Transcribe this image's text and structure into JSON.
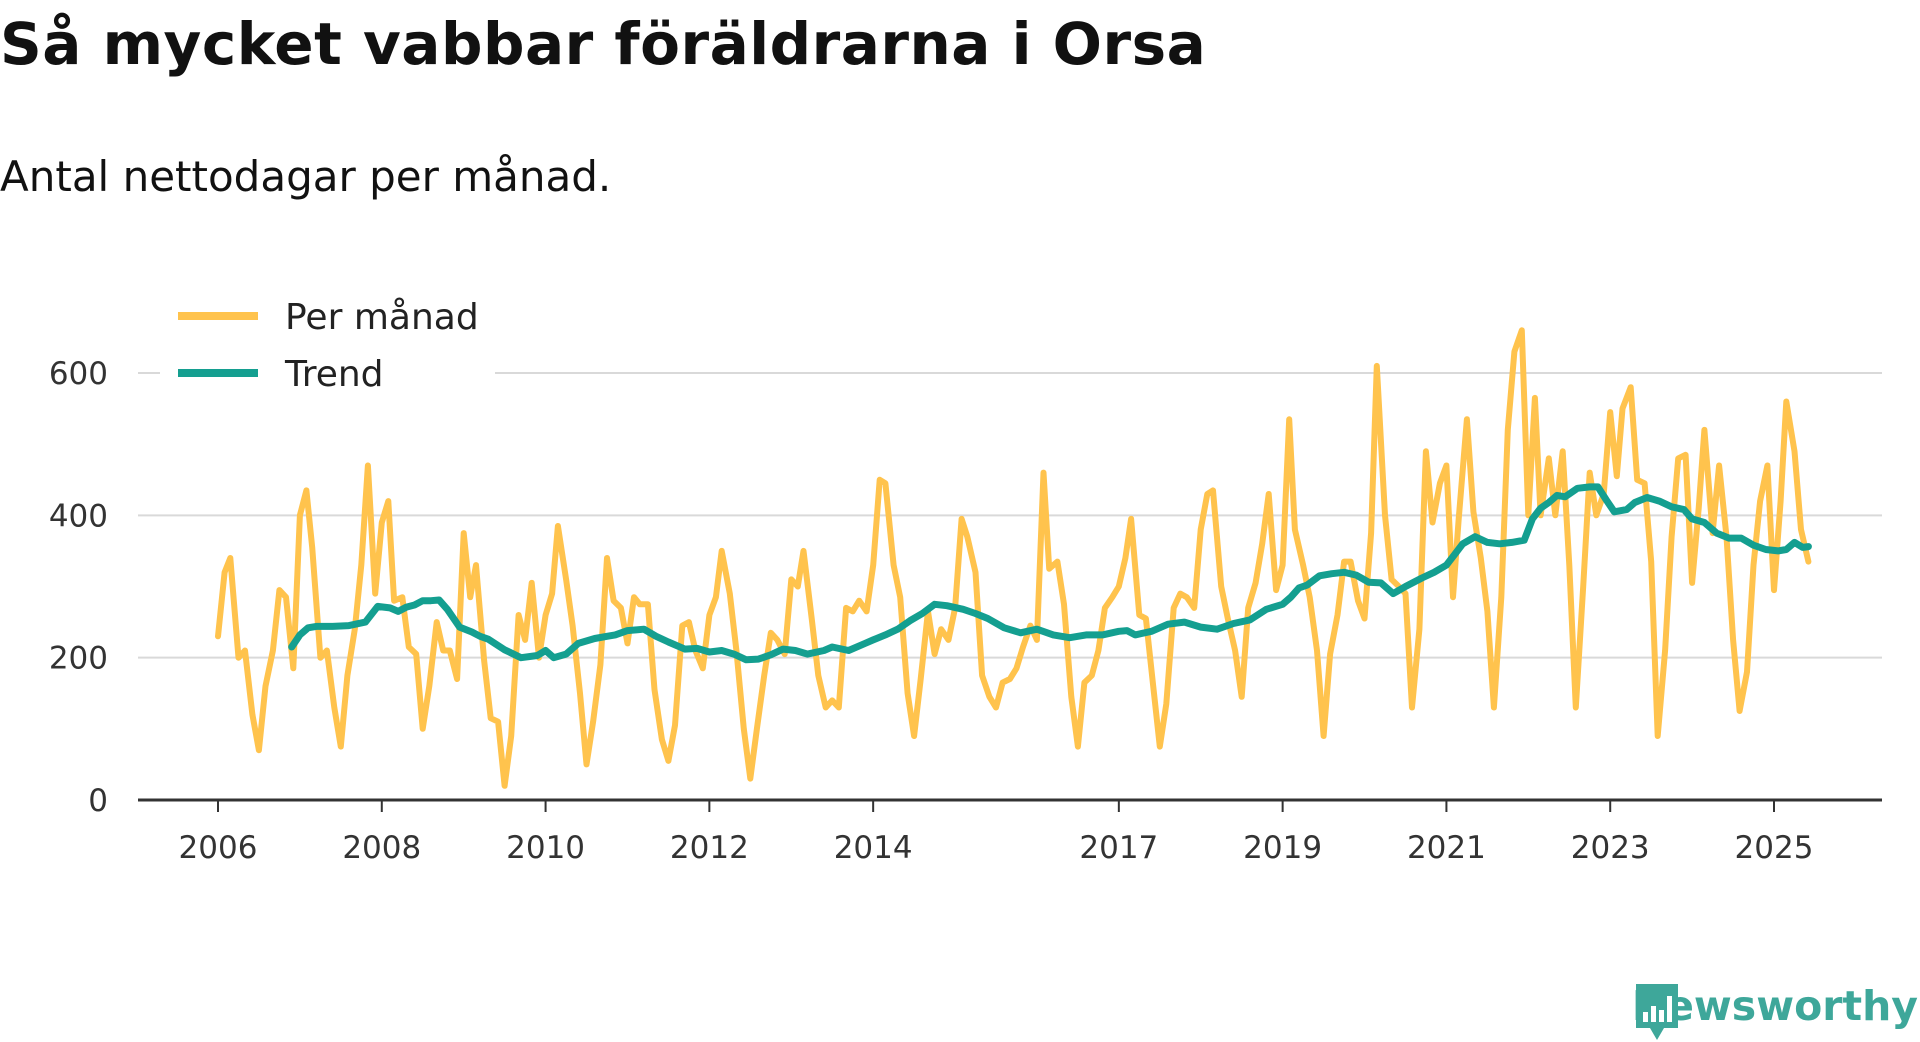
{
  "title": "Så mycket vabbar föräldrarna i Orsa",
  "subtitle": "Antal nettodagar per månad.",
  "brand": {
    "name": "Newsworthy",
    "color": "#3ea79a",
    "icon": "bar-chart-logo-icon"
  },
  "chart_data": {
    "type": "line",
    "ylim": [
      0,
      680
    ],
    "yticks": [
      0,
      200,
      400,
      600
    ],
    "xticks": [
      {
        "label": "2006",
        "t": 2006.0
      },
      {
        "label": "2008",
        "t": 2008.0
      },
      {
        "label": "2010",
        "t": 2010.0
      },
      {
        "label": "2012",
        "t": 2012.0
      },
      {
        "label": "2014",
        "t": 2014.0
      },
      {
        "label": "2017",
        "t": 2017.0
      },
      {
        "label": "2019",
        "t": 2019.0
      },
      {
        "label": "2021",
        "t": 2021.0
      },
      {
        "label": "2023",
        "t": 2023.0
      },
      {
        "label": "2025",
        "t": 2025.0
      }
    ],
    "legend": {
      "placement": "top-left"
    },
    "series": [
      {
        "name": "Per månad",
        "color": "#ffc34d",
        "t": [
          2006.0,
          2006.08,
          2006.15,
          2006.25,
          2006.33,
          2006.42,
          2006.5,
          2006.58,
          2006.67,
          2006.75,
          2006.83,
          2006.92,
          2007.0,
          2007.08,
          2007.15,
          2007.25,
          2007.33,
          2007.42,
          2007.5,
          2007.58,
          2007.67,
          2007.75,
          2007.83,
          2007.92,
          2008.0,
          2008.08,
          2008.15,
          2008.25,
          2008.33,
          2008.42,
          2008.5,
          2008.58,
          2008.67,
          2008.75,
          2008.83,
          2008.92,
          2009.0,
          2009.08,
          2009.15,
          2009.25,
          2009.33,
          2009.42,
          2009.5,
          2009.58,
          2009.67,
          2009.75,
          2009.83,
          2009.92,
          2010.0,
          2010.08,
          2010.15,
          2010.25,
          2010.33,
          2010.42,
          2010.5,
          2010.58,
          2010.67,
          2010.75,
          2010.83,
          2010.92,
          2011.0,
          2011.08,
          2011.15,
          2011.25,
          2011.33,
          2011.42,
          2011.5,
          2011.58,
          2011.67,
          2011.75,
          2011.83,
          2011.92,
          2012.0,
          2012.08,
          2012.15,
          2012.25,
          2012.33,
          2012.42,
          2012.5,
          2012.58,
          2012.67,
          2012.75,
          2012.83,
          2012.92,
          2013.0,
          2013.08,
          2013.15,
          2013.25,
          2013.33,
          2013.42,
          2013.5,
          2013.58,
          2013.67,
          2013.75,
          2013.83,
          2013.92,
          2014.0,
          2014.08,
          2014.15,
          2014.25,
          2014.33,
          2014.42,
          2014.5,
          2014.58,
          2014.67,
          2014.75,
          2014.83,
          2014.92,
          2015.0,
          2015.08,
          2015.15,
          2015.25,
          2015.33,
          2015.42,
          2015.5,
          2015.58,
          2015.67,
          2015.75,
          2015.83,
          2015.92,
          2016.0,
          2016.08,
          2016.15,
          2016.25,
          2016.33,
          2016.42,
          2016.5,
          2016.58,
          2016.67,
          2016.75,
          2016.83,
          2016.92,
          2017.0,
          2017.08,
          2017.15,
          2017.25,
          2017.33,
          2017.42,
          2017.5,
          2017.58,
          2017.67,
          2017.75,
          2017.83,
          2017.92,
          2018.0,
          2018.08,
          2018.15,
          2018.25,
          2018.33,
          2018.42,
          2018.5,
          2018.58,
          2018.67,
          2018.75,
          2018.83,
          2018.92,
          2019.0,
          2019.08,
          2019.15,
          2019.25,
          2019.33,
          2019.42,
          2019.5,
          2019.58,
          2019.67,
          2019.75,
          2019.83,
          2019.92,
          2020.0,
          2020.08,
          2020.15,
          2020.25,
          2020.33,
          2020.42,
          2020.5,
          2020.58,
          2020.67,
          2020.75,
          2020.83,
          2020.92,
          2021.0,
          2021.08,
          2021.15,
          2021.25,
          2021.33,
          2021.42,
          2021.5,
          2021.58,
          2021.67,
          2021.75,
          2021.83,
          2021.92,
          2022.0,
          2022.08,
          2022.15,
          2022.25,
          2022.33,
          2022.42,
          2022.5,
          2022.58,
          2022.67,
          2022.75,
          2022.83,
          2022.92,
          2023.0,
          2023.08,
          2023.15,
          2023.25,
          2023.33,
          2023.42,
          2023.5,
          2023.58,
          2023.67,
          2023.75,
          2023.83,
          2023.92,
          2024.0,
          2024.08,
          2024.15,
          2024.25,
          2024.33,
          2024.42,
          2024.5,
          2024.58,
          2024.67,
          2024.75,
          2024.83,
          2024.92,
          2025.0,
          2025.08,
          2025.15,
          2025.25,
          2025.33,
          2025.42
        ],
        "values": [
          230,
          320,
          340,
          200,
          210,
          120,
          70,
          160,
          210,
          295,
          285,
          185,
          400,
          435,
          355,
          200,
          210,
          130,
          75,
          175,
          240,
          330,
          470,
          290,
          390,
          420,
          280,
          285,
          215,
          205,
          100,
          160,
          250,
          210,
          210,
          170,
          375,
          285,
          330,
          195,
          115,
          110,
          20,
          90,
          260,
          225,
          305,
          200,
          260,
          290,
          385,
          310,
          245,
          150,
          50,
          110,
          190,
          340,
          280,
          270,
          220,
          285,
          275,
          275,
          155,
          85,
          55,
          105,
          245,
          250,
          210,
          185,
          260,
          285,
          350,
          290,
          210,
          100,
          30,
          100,
          175,
          235,
          225,
          205,
          310,
          300,
          350,
          255,
          175,
          130,
          140,
          130,
          270,
          265,
          280,
          265,
          330,
          450,
          445,
          330,
          285,
          150,
          90,
          170,
          265,
          205,
          240,
          225,
          270,
          395,
          370,
          320,
          175,
          145,
          130,
          165,
          170,
          185,
          215,
          245,
          225,
          460,
          325,
          335,
          275,
          145,
          75,
          165,
          175,
          210,
          270,
          285,
          300,
          340,
          395,
          260,
          255,
          160,
          75,
          135,
          270,
          290,
          285,
          270,
          380,
          430,
          435,
          300,
          255,
          210,
          145,
          270,
          305,
          360,
          430,
          295,
          330,
          535,
          380,
          330,
          285,
          210,
          90,
          205,
          260,
          335,
          335,
          280,
          255,
          375,
          610,
          400,
          310,
          300,
          290,
          130,
          240,
          490,
          390,
          445,
          470,
          285,
          395,
          535,
          405,
          340,
          265,
          130,
          285,
          520,
          630,
          660,
          400,
          565,
          400,
          480,
          400,
          490,
          330,
          130,
          300,
          460,
          400,
          430,
          545,
          455,
          550,
          580,
          450,
          445,
          335,
          90,
          210,
          370,
          480,
          485,
          305,
          410,
          520,
          375,
          470,
          370,
          225,
          125,
          180,
          330,
          420,
          470,
          295,
          420,
          560,
          490,
          380,
          335
        ]
      },
      {
        "name": "Trend",
        "color": "#149f90",
        "t": [
          2006.9,
          2007.0,
          2007.1,
          2007.2,
          2007.4,
          2007.6,
          2007.8,
          2007.95,
          2008.1,
          2008.2,
          2008.3,
          2008.4,
          2008.5,
          2008.6,
          2008.7,
          2008.8,
          2008.95,
          2009.1,
          2009.2,
          2009.3,
          2009.5,
          2009.7,
          2009.9,
          2010.0,
          2010.1,
          2010.25,
          2010.4,
          2010.6,
          2010.75,
          2010.85,
          2011.0,
          2011.2,
          2011.35,
          2011.5,
          2011.7,
          2011.85,
          2012.0,
          2012.15,
          2012.3,
          2012.45,
          2012.6,
          2012.75,
          2012.9,
          2013.05,
          2013.2,
          2013.4,
          2013.5,
          2013.7,
          2013.9,
          2014.0,
          2014.15,
          2014.3,
          2014.45,
          2014.6,
          2014.75,
          2014.9,
          2015.1,
          2015.25,
          2015.4,
          2015.6,
          2015.8,
          2016.0,
          2016.2,
          2016.4,
          2016.6,
          2016.8,
          2017.0,
          2017.1,
          2017.2,
          2017.4,
          2017.6,
          2017.8,
          2018.0,
          2018.2,
          2018.4,
          2018.6,
          2018.8,
          2019.0,
          2019.1,
          2019.2,
          2019.3,
          2019.45,
          2019.6,
          2019.75,
          2019.9,
          2020.05,
          2020.2,
          2020.35,
          2020.5,
          2020.7,
          2020.85,
          2021.0,
          2021.1,
          2021.2,
          2021.35,
          2021.5,
          2021.65,
          2021.8,
          2021.95,
          2022.05,
          2022.15,
          2022.25,
          2022.35,
          2022.45,
          2022.6,
          2022.75,
          2022.85,
          2022.95,
          2023.05,
          2023.2,
          2023.3,
          2023.45,
          2023.6,
          2023.75,
          2023.9,
          2024.0,
          2024.15,
          2024.3,
          2024.45,
          2024.6,
          2024.75,
          2024.9,
          2025.05,
          2025.15,
          2025.25,
          2025.35,
          2025.42
        ],
        "values": [
          215,
          232,
          242,
          244,
          244,
          245,
          250,
          272,
          270,
          265,
          271,
          274,
          280,
          280,
          281,
          268,
          243,
          236,
          230,
          226,
          211,
          200,
          203,
          210,
          200,
          205,
          220,
          227,
          230,
          232,
          238,
          240,
          230,
          222,
          212,
          213,
          208,
          210,
          205,
          197,
          198,
          204,
          212,
          210,
          205,
          210,
          215,
          210,
          220,
          225,
          232,
          240,
          252,
          262,
          275,
          273,
          268,
          262,
          255,
          242,
          235,
          240,
          232,
          228,
          232,
          232,
          237,
          238,
          232,
          237,
          247,
          250,
          243,
          240,
          248,
          253,
          268,
          275,
          285,
          298,
          302,
          315,
          318,
          320,
          316,
          306,
          305,
          290,
          300,
          312,
          320,
          330,
          345,
          360,
          370,
          362,
          360,
          362,
          365,
          395,
          410,
          418,
          428,
          426,
          438,
          440,
          440,
          422,
          405,
          408,
          418,
          425,
          420,
          412,
          408,
          395,
          390,
          375,
          368,
          368,
          358,
          352,
          350,
          352,
          362,
          355,
          356
        ]
      }
    ]
  }
}
